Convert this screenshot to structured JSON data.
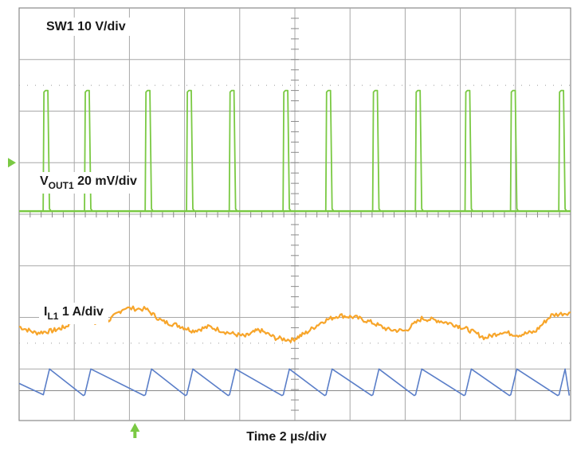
{
  "chart_data": {
    "type": "line",
    "title": "",
    "xlabel": "Time 2 µs/div",
    "ylabel": "",
    "grid": true,
    "divisions": {
      "x": 10,
      "y": 8
    },
    "x_range_us": [
      0,
      20
    ],
    "trigger_time_us": 4.2,
    "legend": "per-trace inline labels",
    "channels": [
      {
        "key": "sw1",
        "label": {
          "main": "SW1 10 V/div",
          "sub": ""
        },
        "color": "#7ac943",
        "kind": "pulse",
        "ground_div": 4.06,
        "high_div": 6.4,
        "marker_div": 5.0,
        "pulse_width_us": 0.2,
        "pulse_starts_us": [
          0.9,
          2.4,
          4.6,
          6.1,
          7.65,
          9.6,
          11.15,
          12.85,
          14.4,
          16.2,
          17.85,
          19.6
        ]
      },
      {
        "key": "vout1",
        "label": {
          "main": "V",
          "sub": "OUT1",
          "rest": " 20 mV/div"
        },
        "color": "#f7a52a",
        "kind": "ripple",
        "baseline_div": 2.05,
        "points_us": [
          0,
          0.6,
          1.2,
          1.7,
          2.2,
          2.7,
          3.3,
          3.8,
          4.6,
          5.2,
          5.8,
          6.3,
          6.9,
          7.6,
          8.2,
          8.7,
          9.3,
          9.9,
          10.4,
          11.0,
          11.6,
          12.2,
          12.8,
          13.4,
          14.0,
          14.6,
          15.2,
          15.8,
          16.3,
          16.9,
          17.5,
          18.1,
          18.7,
          19.3,
          20.0
        ],
        "points_div": [
          1.82,
          1.7,
          1.74,
          1.82,
          2.05,
          1.88,
          1.96,
          2.18,
          2.16,
          1.92,
          1.84,
          1.74,
          1.82,
          1.7,
          1.63,
          1.76,
          1.6,
          1.56,
          1.7,
          1.92,
          2.04,
          2.0,
          1.9,
          1.76,
          1.74,
          1.98,
          1.94,
          1.86,
          1.76,
          1.6,
          1.72,
          1.66,
          1.72,
          2.04,
          2.1
        ]
      },
      {
        "key": "il1",
        "label": {
          "main": "I",
          "sub": "L1",
          "rest": " 1 A/div"
        },
        "color": "#5a7ec8",
        "kind": "sawtooth",
        "baseline_div": 0.58,
        "valley_div": 0.5,
        "peak_div": 1.0,
        "peak_times_us": [
          1.1,
          2.6,
          4.8,
          6.3,
          7.85,
          9.8,
          11.35,
          13.05,
          14.6,
          16.4,
          18.05,
          19.8
        ]
      }
    ]
  }
}
